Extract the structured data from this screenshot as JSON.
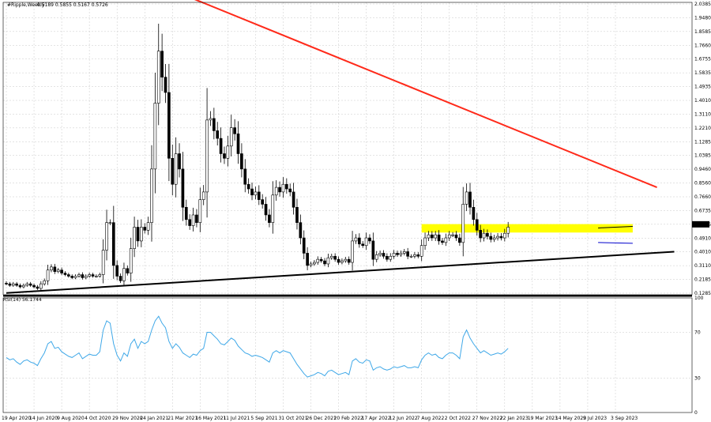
{
  "header": {
    "symbol": "#Ripple,Weekly",
    "ohlc": "0.5189 0.5855 0.5167 0.5726"
  },
  "rsi_header": "RSI(14) 56.1744",
  "chart_data": {
    "type": "candlestick",
    "title": "",
    "x_tick_labels": [
      "19 Apr 2020",
      "14 Jun 2020",
      "9 Aug 2020",
      "4 Oct 2020",
      "29 Nov 2020",
      "24 Jan 2021",
      "21 Mar 2021",
      "16 May 2021",
      "11 Jul 2021",
      "5 Sep 2021",
      "31 Oct 2021",
      "26 Dec 2021",
      "20 Feb 2022",
      "17 Apr 2022",
      "12 Jun 2022",
      "7 Aug 2022",
      "2 Oct 2022",
      "27 Nov 2022",
      "22 Jan 2023",
      "19 Mar 2023",
      "14 May 2023",
      "9 Jul 2023",
      "3 Sep 2023"
    ],
    "y_tick_labels": [
      "2.0385",
      "1.9480",
      "1.8585",
      "1.7660",
      "1.6755",
      "1.5835",
      "1.4935",
      "1.4010",
      "1.3110",
      "1.2210",
      "1.1285",
      "1.0385",
      "0.9460",
      "0.8560",
      "0.7660",
      "0.6735",
      "0.5726",
      "0.4910",
      "0.4010",
      "0.3110",
      "0.2185",
      "0.1285"
    ],
    "current_price": "0.5726",
    "ylim": [
      0.1285,
      2.0385
    ],
    "weekly_closes": [
      0.2,
      0.19,
      0.2,
      0.19,
      0.18,
      0.19,
      0.2,
      0.19,
      0.18,
      0.17,
      0.2,
      0.22,
      0.29,
      0.31,
      0.28,
      0.29,
      0.27,
      0.26,
      0.25,
      0.24,
      0.25,
      0.26,
      0.24,
      0.25,
      0.26,
      0.25,
      0.25,
      0.26,
      0.42,
      0.6,
      0.6,
      0.32,
      0.25,
      0.22,
      0.3,
      0.27,
      0.43,
      0.57,
      0.48,
      0.57,
      0.55,
      0.6,
      0.95,
      1.38,
      1.72,
      1.55,
      1.45,
      1.02,
      0.85,
      1.05,
      0.95,
      0.7,
      0.62,
      0.58,
      0.65,
      0.6,
      0.75,
      0.8,
      1.27,
      1.28,
      1.2,
      1.15,
      1.05,
      1.02,
      1.1,
      1.22,
      1.18,
      1.05,
      0.95,
      0.85,
      0.82,
      0.78,
      0.8,
      0.75,
      0.72,
      0.65,
      0.6,
      0.78,
      0.83,
      0.8,
      0.85,
      0.82,
      0.8,
      0.7,
      0.6,
      0.5,
      0.4,
      0.32,
      0.33,
      0.34,
      0.36,
      0.35,
      0.33,
      0.37,
      0.38,
      0.36,
      0.34,
      0.35,
      0.36,
      0.34,
      0.48,
      0.5,
      0.46,
      0.45,
      0.5,
      0.48,
      0.36,
      0.39,
      0.4,
      0.38,
      0.36,
      0.38,
      0.4,
      0.39,
      0.4,
      0.41,
      0.38,
      0.38,
      0.39,
      0.38,
      0.45,
      0.5,
      0.52,
      0.5,
      0.52,
      0.48,
      0.47,
      0.5,
      0.52,
      0.52,
      0.5,
      0.47,
      0.72,
      0.8,
      0.7,
      0.62,
      0.55,
      0.5,
      0.53,
      0.51,
      0.49,
      0.5,
      0.51,
      0.5,
      0.53,
      0.57
    ],
    "annotations": [
      {
        "type": "trendline",
        "color": "#ff2a1a",
        "from": {
          "date": "2021-04-11",
          "price": 2.09
        },
        "to": {
          "date": "2023-11-26",
          "price": 0.83
        }
      },
      {
        "type": "trendline",
        "color": "#000000",
        "from": {
          "date": "2020-04-19",
          "price": 0.14
        },
        "to": {
          "date": "2023-12-31",
          "price": 0.41
        }
      },
      {
        "type": "zone",
        "color": "#ffff00",
        "from_date": "2022-08-07",
        "to_date": "2023-10-08",
        "price_low": 0.535,
        "price_high": 0.59
      },
      {
        "type": "line",
        "color": "#000000",
        "from": {
          "date": "2023-07-30",
          "price": 0.565
        },
        "to": {
          "date": "2023-10-08",
          "price": 0.575
        }
      },
      {
        "type": "line",
        "color": "#0000cc",
        "from": {
          "date": "2023-07-30",
          "price": 0.47
        },
        "to": {
          "date": "2023-10-08",
          "price": 0.465
        }
      }
    ],
    "rsi": {
      "name": "RSI(14)",
      "current": 56.1744,
      "ylim": [
        0,
        100
      ],
      "levels": [
        70,
        30
      ],
      "tick_labels": [
        "100",
        "70",
        "30",
        "0"
      ],
      "values": [
        48,
        46,
        47,
        44,
        42,
        45,
        46,
        44,
        43,
        41,
        47,
        52,
        60,
        62,
        56,
        57,
        53,
        51,
        49,
        48,
        50,
        52,
        47,
        49,
        51,
        50,
        50,
        53,
        72,
        80,
        78,
        60,
        50,
        45,
        52,
        49,
        60,
        64,
        56,
        62,
        60,
        62,
        72,
        80,
        84,
        78,
        74,
        62,
        56,
        60,
        57,
        52,
        50,
        48,
        51,
        50,
        54,
        56,
        70,
        70,
        67,
        64,
        60,
        59,
        62,
        65,
        63,
        58,
        55,
        52,
        51,
        49,
        50,
        49,
        48,
        46,
        44,
        52,
        54,
        52,
        54,
        53,
        52,
        47,
        42,
        38,
        34,
        31,
        32,
        33,
        35,
        34,
        32,
        36,
        37,
        35,
        33,
        34,
        35,
        33,
        45,
        47,
        44,
        43,
        46,
        45,
        37,
        39,
        40,
        38,
        37,
        38,
        40,
        39,
        40,
        41,
        39,
        39,
        40,
        39,
        46,
        50,
        52,
        50,
        51,
        48,
        47,
        50,
        52,
        52,
        50,
        47,
        66,
        72,
        65,
        60,
        56,
        52,
        54,
        52,
        50,
        51,
        52,
        51,
        53,
        56
      ]
    }
  }
}
